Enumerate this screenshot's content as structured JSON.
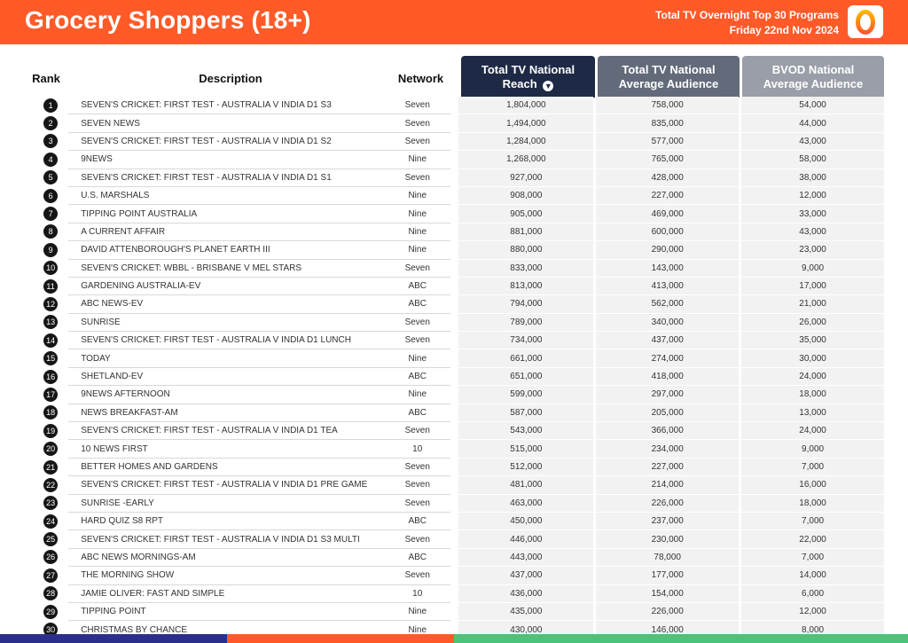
{
  "header": {
    "title": "Grocery Shoppers (18+)",
    "subtitle_line1": "Total TV Overnight Top 30 Programs",
    "subtitle_line2": "Friday 22nd Nov 2024",
    "logo_text": "O",
    "colors": {
      "header_bg": "#ff5a28"
    }
  },
  "columns": {
    "rank": "Rank",
    "description": "Description",
    "network": "Network",
    "reach": "Total TV National Reach",
    "avg_audience": "Total TV National Average Audience",
    "bvod": "BVOD National Average Audience",
    "sort_icon": "arrow-down-circle-icon",
    "colors": {
      "reach_bg": "#1e2a45",
      "avg_bg": "#636b7a",
      "bvod_bg": "#999ea8"
    }
  },
  "rows": [
    {
      "rank": "1",
      "description": "SEVEN'S CRICKET: FIRST TEST - AUSTRALIA V INDIA D1 S3",
      "network": "Seven",
      "reach": "1,804,000",
      "avg": "758,000",
      "bvod": "54,000"
    },
    {
      "rank": "2",
      "description": "SEVEN NEWS",
      "network": "Seven",
      "reach": "1,494,000",
      "avg": "835,000",
      "bvod": "44,000"
    },
    {
      "rank": "3",
      "description": "SEVEN'S CRICKET: FIRST TEST - AUSTRALIA V INDIA D1 S2",
      "network": "Seven",
      "reach": "1,284,000",
      "avg": "577,000",
      "bvod": "43,000"
    },
    {
      "rank": "4",
      "description": "9NEWS",
      "network": "Nine",
      "reach": "1,268,000",
      "avg": "765,000",
      "bvod": "58,000"
    },
    {
      "rank": "5",
      "description": "SEVEN'S CRICKET: FIRST TEST - AUSTRALIA V INDIA D1 S1",
      "network": "Seven",
      "reach": "927,000",
      "avg": "428,000",
      "bvod": "38,000"
    },
    {
      "rank": "6",
      "description": "U.S. MARSHALS",
      "network": "Nine",
      "reach": "908,000",
      "avg": "227,000",
      "bvod": "12,000"
    },
    {
      "rank": "7",
      "description": "TIPPING POINT AUSTRALIA",
      "network": "Nine",
      "reach": "905,000",
      "avg": "469,000",
      "bvod": "33,000"
    },
    {
      "rank": "8",
      "description": "A CURRENT AFFAIR",
      "network": "Nine",
      "reach": "881,000",
      "avg": "600,000",
      "bvod": "43,000"
    },
    {
      "rank": "9",
      "description": "DAVID ATTENBOROUGH'S PLANET EARTH III",
      "network": "Nine",
      "reach": "880,000",
      "avg": "290,000",
      "bvod": "23,000"
    },
    {
      "rank": "10",
      "description": "SEVEN'S CRICKET: WBBL - BRISBANE V MEL STARS",
      "network": "Seven",
      "reach": "833,000",
      "avg": "143,000",
      "bvod": "9,000"
    },
    {
      "rank": "11",
      "description": "GARDENING AUSTRALIA-EV",
      "network": "ABC",
      "reach": "813,000",
      "avg": "413,000",
      "bvod": "17,000"
    },
    {
      "rank": "12",
      "description": "ABC NEWS-EV",
      "network": "ABC",
      "reach": "794,000",
      "avg": "562,000",
      "bvod": "21,000"
    },
    {
      "rank": "13",
      "description": "SUNRISE",
      "network": "Seven",
      "reach": "789,000",
      "avg": "340,000",
      "bvod": "26,000"
    },
    {
      "rank": "14",
      "description": "SEVEN'S CRICKET: FIRST TEST - AUSTRALIA V INDIA D1 LUNCH",
      "network": "Seven",
      "reach": "734,000",
      "avg": "437,000",
      "bvod": "35,000"
    },
    {
      "rank": "15",
      "description": "TODAY",
      "network": "Nine",
      "reach": "661,000",
      "avg": "274,000",
      "bvod": "30,000"
    },
    {
      "rank": "16",
      "description": "SHETLAND-EV",
      "network": "ABC",
      "reach": "651,000",
      "avg": "418,000",
      "bvod": "24,000"
    },
    {
      "rank": "17",
      "description": "9NEWS AFTERNOON",
      "network": "Nine",
      "reach": "599,000",
      "avg": "297,000",
      "bvod": "18,000"
    },
    {
      "rank": "18",
      "description": "NEWS BREAKFAST-AM",
      "network": "ABC",
      "reach": "587,000",
      "avg": "205,000",
      "bvod": "13,000"
    },
    {
      "rank": "19",
      "description": "SEVEN'S CRICKET: FIRST TEST - AUSTRALIA V INDIA D1 TEA",
      "network": "Seven",
      "reach": "543,000",
      "avg": "366,000",
      "bvod": "24,000"
    },
    {
      "rank": "20",
      "description": "10 NEWS FIRST",
      "network": "10",
      "reach": "515,000",
      "avg": "234,000",
      "bvod": "9,000"
    },
    {
      "rank": "21",
      "description": "BETTER HOMES AND GARDENS",
      "network": "Seven",
      "reach": "512,000",
      "avg": "227,000",
      "bvod": "7,000"
    },
    {
      "rank": "22",
      "description": "SEVEN'S CRICKET: FIRST TEST - AUSTRALIA V INDIA D1 PRE GAME",
      "network": "Seven",
      "reach": "481,000",
      "avg": "214,000",
      "bvod": "16,000"
    },
    {
      "rank": "23",
      "description": "SUNRISE -EARLY",
      "network": "Seven",
      "reach": "463,000",
      "avg": "226,000",
      "bvod": "18,000"
    },
    {
      "rank": "24",
      "description": "HARD QUIZ S8 RPT",
      "network": "ABC",
      "reach": "450,000",
      "avg": "237,000",
      "bvod": "7,000"
    },
    {
      "rank": "25",
      "description": "SEVEN'S CRICKET: FIRST TEST - AUSTRALIA V INDIA D1 S3 MULTI",
      "network": "Seven",
      "reach": "446,000",
      "avg": "230,000",
      "bvod": "22,000"
    },
    {
      "rank": "26",
      "description": "ABC NEWS MORNINGS-AM",
      "network": "ABC",
      "reach": "443,000",
      "avg": "78,000",
      "bvod": "7,000"
    },
    {
      "rank": "27",
      "description": "THE MORNING SHOW",
      "network": "Seven",
      "reach": "437,000",
      "avg": "177,000",
      "bvod": "14,000"
    },
    {
      "rank": "28",
      "description": "JAMIE OLIVER: FAST AND SIMPLE",
      "network": "10",
      "reach": "436,000",
      "avg": "154,000",
      "bvod": "6,000"
    },
    {
      "rank": "29",
      "description": "TIPPING POINT",
      "network": "Nine",
      "reach": "435,000",
      "avg": "226,000",
      "bvod": "12,000"
    },
    {
      "rank": "30",
      "description": "CHRISTMAS BY CHANCE",
      "network": "Nine",
      "reach": "430,000",
      "avg": "146,000",
      "bvod": "8,000"
    }
  ],
  "footer": {
    "colors": [
      "#2b2f8c",
      "#ff5a28",
      "#4cc27a"
    ]
  }
}
